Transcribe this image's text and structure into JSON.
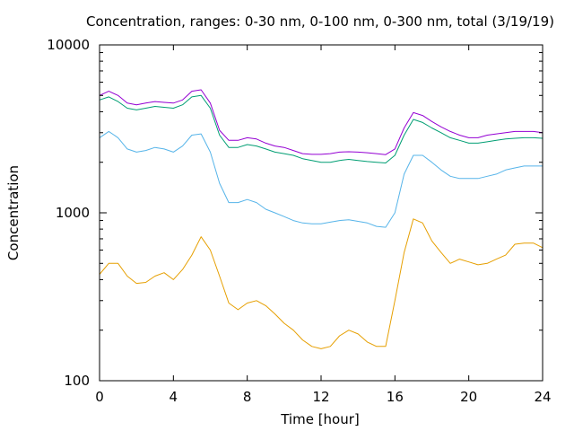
{
  "chart_data": {
    "type": "line",
    "title": "Concentration, ranges: 0-30 nm, 0-100 nm, 0-300 nm, total (3/19/19)",
    "xlabel": "Time [hour]",
    "ylabel": "Concentration",
    "xlim": [
      0,
      24
    ],
    "ylim": [
      100,
      10000
    ],
    "yscale": "log",
    "grid": false,
    "xticks": [
      0,
      4,
      8,
      12,
      16,
      20,
      24
    ],
    "xtick_labels": [
      "0",
      "4",
      "8",
      "12",
      "16",
      "20",
      "24"
    ],
    "yticks": [
      100,
      1000,
      10000
    ],
    "ytick_labels": [
      "100",
      "1000",
      "10000"
    ],
    "x": [
      0,
      0.5,
      1,
      1.5,
      2,
      2.5,
      3,
      3.5,
      4,
      4.5,
      5,
      5.5,
      6,
      6.5,
      7,
      7.5,
      8,
      8.5,
      9,
      9.5,
      10,
      10.5,
      11,
      11.5,
      12,
      12.5,
      13,
      13.5,
      14,
      14.5,
      15,
      15.5,
      16,
      16.5,
      17,
      17.5,
      18,
      18.5,
      19,
      19.5,
      20,
      20.5,
      21,
      21.5,
      22,
      22.5,
      23,
      23.5,
      24
    ],
    "series": [
      {
        "color": "#e69f00",
        "values": [
          430,
          500,
          500,
          420,
          380,
          385,
          420,
          440,
          400,
          460,
          560,
          720,
          600,
          420,
          290,
          265,
          290,
          300,
          280,
          250,
          220,
          200,
          175,
          160,
          155,
          160,
          185,
          200,
          190,
          170,
          160,
          160,
          300,
          580,
          920,
          870,
          680,
          580,
          500,
          530,
          510,
          490,
          500,
          530,
          560,
          650,
          660,
          660,
          620
        ]
      },
      {
        "color": "#56b4e9",
        "values": [
          2800,
          3050,
          2800,
          2400,
          2300,
          2350,
          2450,
          2400,
          2300,
          2500,
          2900,
          2950,
          2300,
          1500,
          1150,
          1150,
          1200,
          1150,
          1050,
          1000,
          950,
          900,
          870,
          860,
          860,
          880,
          900,
          910,
          890,
          870,
          830,
          820,
          1000,
          1700,
          2200,
          2200,
          2000,
          1800,
          1650,
          1600,
          1600,
          1600,
          1650,
          1700,
          1800,
          1850,
          1900,
          1900,
          1900
        ]
      },
      {
        "color": "#009e73",
        "values": [
          4700,
          4900,
          4600,
          4200,
          4100,
          4200,
          4300,
          4250,
          4200,
          4400,
          4900,
          5000,
          4200,
          2900,
          2450,
          2450,
          2550,
          2500,
          2400,
          2300,
          2250,
          2200,
          2100,
          2050,
          2000,
          2000,
          2050,
          2080,
          2050,
          2020,
          2000,
          1980,
          2200,
          2900,
          3600,
          3450,
          3200,
          3000,
          2800,
          2700,
          2600,
          2600,
          2650,
          2700,
          2750,
          2780,
          2800,
          2800,
          2780
        ]
      },
      {
        "color": "#9400d3",
        "values": [
          5000,
          5300,
          5000,
          4500,
          4400,
          4500,
          4600,
          4550,
          4500,
          4700,
          5300,
          5400,
          4500,
          3100,
          2700,
          2700,
          2800,
          2750,
          2600,
          2500,
          2450,
          2350,
          2250,
          2230,
          2230,
          2250,
          2300,
          2310,
          2300,
          2280,
          2250,
          2220,
          2400,
          3200,
          3950,
          3800,
          3500,
          3250,
          3050,
          2900,
          2800,
          2800,
          2900,
          2950,
          3000,
          3050,
          3050,
          3050,
          3000
        ]
      }
    ]
  }
}
